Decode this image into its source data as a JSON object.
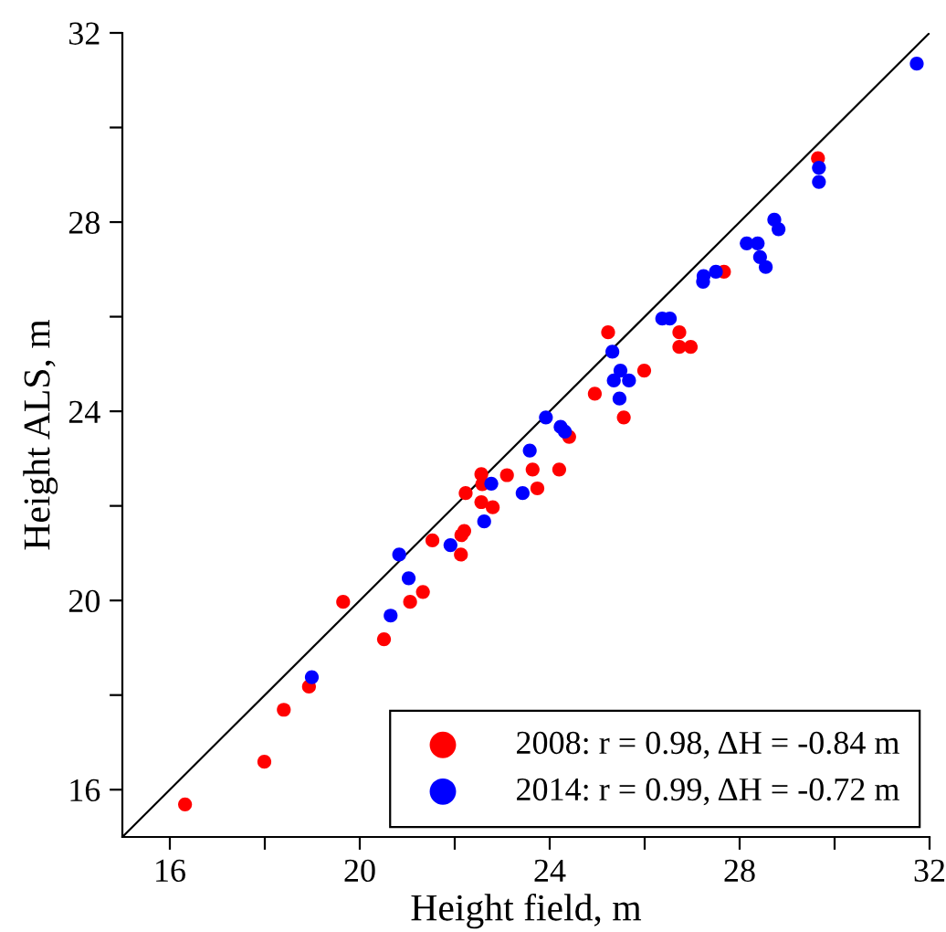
{
  "chart_data": {
    "type": "scatter",
    "xlabel": "Height field, m",
    "ylabel": "Height ALS, m",
    "xlim": [
      15,
      32
    ],
    "ylim": [
      15,
      32
    ],
    "xticks": [
      16,
      {
        "value": 18,
        "label": null
      },
      20,
      {
        "value": 22,
        "label": null
      },
      24,
      {
        "value": 26,
        "label": null
      },
      28,
      {
        "value": 30,
        "label": null
      },
      32
    ],
    "yticks": [
      16,
      {
        "value": 18,
        "label": null
      },
      20,
      {
        "value": 22,
        "label": null
      },
      24,
      {
        "value": 26,
        "label": null
      },
      28,
      {
        "value": 30,
        "label": null
      },
      32
    ],
    "grid": false,
    "legend": "bottom right",
    "series": [
      {
        "name": "2008: r = 0.98, ΔH = -0.84 m",
        "color": "#ff0000",
        "marker": "circle",
        "x": [
          16.32,
          17.99,
          18.4,
          18.93,
          19.65,
          20.51,
          21.06,
          21.33,
          21.53,
          22.13,
          22.14,
          22.2,
          22.23,
          22.56,
          22.8,
          22.58,
          22.56,
          23.1,
          23.74,
          23.64,
          24.2,
          24.41,
          24.95,
          25.56,
          25.99,
          25.23,
          26.73,
          26.73,
          26.97,
          27.67,
          29.65
        ],
        "values": [
          15.69,
          16.59,
          17.69,
          18.18,
          19.97,
          19.18,
          19.97,
          20.18,
          21.27,
          20.97,
          21.38,
          21.47,
          22.27,
          22.08,
          21.97,
          22.46,
          22.67,
          22.65,
          22.37,
          22.77,
          22.77,
          23.46,
          24.37,
          23.87,
          24.86,
          25.67,
          25.67,
          25.36,
          25.36,
          26.95,
          29.35
        ]
      },
      {
        "name": "2014: r = 0.99, ΔH = -0.72 m",
        "color": "#0000ff",
        "marker": "circle",
        "x": [
          18.99,
          20.65,
          20.83,
          21.03,
          21.91,
          22.62,
          22.77,
          23.43,
          23.58,
          23.92,
          24.23,
          24.32,
          25.32,
          25.49,
          25.35,
          25.67,
          25.47,
          26.37,
          26.53,
          27.24,
          27.23,
          27.5,
          28.15,
          28.38,
          28.43,
          28.55,
          28.73,
          28.82,
          29.67,
          29.67,
          31.73
        ],
        "values": [
          18.38,
          19.68,
          20.97,
          20.47,
          21.17,
          21.67,
          22.47,
          22.27,
          23.17,
          23.87,
          23.67,
          23.57,
          25.26,
          24.86,
          24.65,
          24.65,
          24.27,
          25.96,
          25.96,
          26.86,
          26.74,
          26.95,
          27.55,
          27.55,
          27.26,
          27.05,
          28.05,
          27.85,
          29.15,
          28.85,
          31.35
        ]
      },
      {
        "type": "line",
        "color": "#000000",
        "marker": "none",
        "x": [
          15,
          32
        ],
        "values": [
          15,
          32
        ]
      }
    ]
  }
}
